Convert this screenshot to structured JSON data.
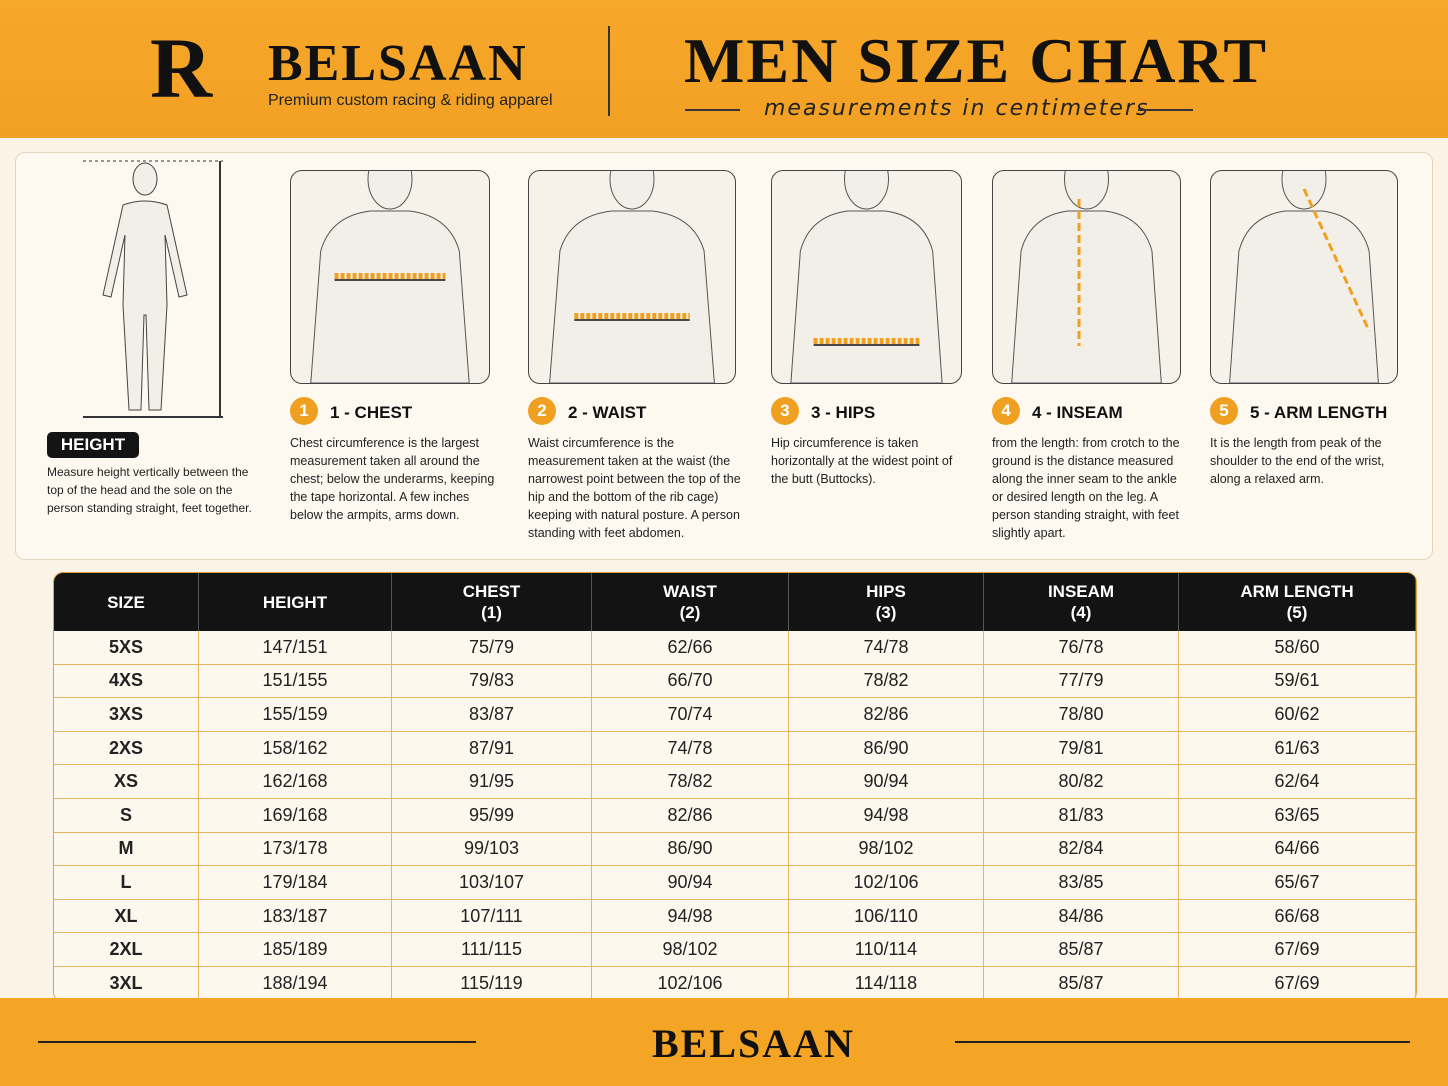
{
  "header": {
    "logo_letter": "R",
    "brand": "BELSAAN",
    "tagline": "Premium custom racing & riding apparel",
    "title": "MEN SIZE CHART",
    "subtitle": "measurements in centimeters"
  },
  "guide": {
    "height": {
      "label": "HEIGHT",
      "text": "Measure height vertically between the top of the head and the sole on the person standing straight, feet together."
    },
    "steps": [
      {
        "number": "1",
        "title": "1 - CHEST",
        "text": "Chest circumference is the largest measurement taken all around the chest; below the underarms, keeping the tape horizontal. A few inches below the armpits, arms down."
      },
      {
        "number": "2",
        "title": "2 - WAIST",
        "text": "Waist circumference is the measurement taken at the waist (the narrowest point between the top of the hip and the bottom of the rib cage) keeping with natural posture. A person standing with feet abdomen."
      },
      {
        "number": "3",
        "title": "3 - HIPS",
        "text": "Hip circumference is taken horizontally at the widest point of the butt (Buttocks)."
      },
      {
        "number": "4",
        "title": "4 - INSEAM",
        "text": "from the length: from crotch to the ground is the distance measured along the inner seam to the ankle or desired length on the leg. A person standing straight, with feet slightly apart."
      },
      {
        "number": "5",
        "title": "5 - ARM LENGTH",
        "text": "It is the length from peak of the shoulder to the end of the wrist, along a relaxed arm."
      }
    ]
  },
  "table": {
    "columns": [
      {
        "label": "SIZE"
      },
      {
        "label": "HEIGHT"
      },
      {
        "label": "CHEST",
        "note": "(1)"
      },
      {
        "label": "WAIST",
        "note": "(2)"
      },
      {
        "label": "HIPS",
        "note": "(3)"
      },
      {
        "label": "INSEAM",
        "note": "(4)"
      },
      {
        "label": "ARM LENGTH",
        "note": "(5)"
      }
    ],
    "rows": [
      [
        "5XS",
        "147/151",
        "75/79",
        "62/66",
        "74/78",
        "76/78",
        "58/60"
      ],
      [
        "4XS",
        "151/155",
        "79/83",
        "66/70",
        "78/82",
        "77/79",
        "59/61"
      ],
      [
        "3XS",
        "155/159",
        "83/87",
        "70/74",
        "82/86",
        "78/80",
        "60/62"
      ],
      [
        "2XS",
        "158/162",
        "87/91",
        "74/78",
        "86/90",
        "79/81",
        "61/63"
      ],
      [
        "XS",
        "162/168",
        "91/95",
        "78/82",
        "90/94",
        "80/82",
        "62/64"
      ],
      [
        "S",
        "169/168",
        "95/99",
        "82/86",
        "94/98",
        "81/83",
        "63/65"
      ],
      [
        "M",
        "173/178",
        "99/103",
        "86/90",
        "98/102",
        "82/84",
        "64/66"
      ],
      [
        "L",
        "179/184",
        "103/107",
        "90/94",
        "102/106",
        "83/85",
        "65/67"
      ],
      [
        "XL",
        "183/187",
        "107/111",
        "94/98",
        "106/110",
        "84/86",
        "66/68"
      ],
      [
        "2XL",
        "185/189",
        "111/115",
        "98/102",
        "110/114",
        "85/87",
        "67/69"
      ],
      [
        "3XL",
        "188/194",
        "115/119",
        "102/106",
        "114/118",
        "85/87",
        "67/69"
      ]
    ]
  },
  "footer": {
    "brand": "BELSAAN"
  }
}
